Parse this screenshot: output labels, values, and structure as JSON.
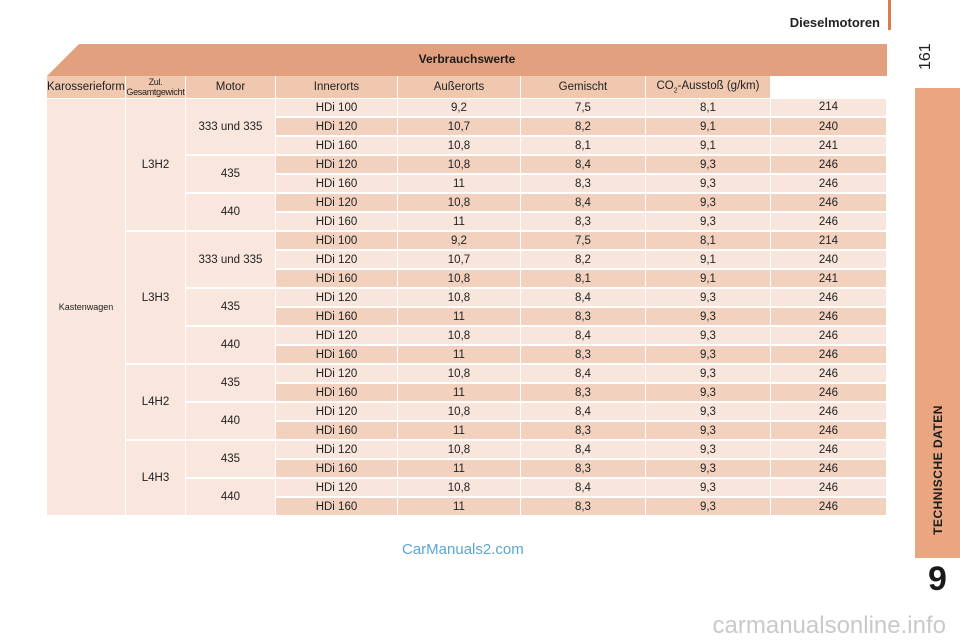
{
  "header": {
    "section_title": "Dieselmotoren",
    "page_number": "161"
  },
  "side_tab": {
    "label": "TECHNISCHE DATEN",
    "chapter_number": "9"
  },
  "table": {
    "title": "Verbrauchswerte",
    "columns": [
      "Karosserieform",
      "Zul. Gesamtgewicht",
      "Motor",
      "Innerorts",
      "Außerorts",
      "Gemischt",
      "CO",
      "2",
      "-Ausstoß (g/km)"
    ],
    "body_type": "Kastenwagen",
    "groups": [
      {
        "variant": "L3H2",
        "weights": [
          {
            "weight": "333 und 335",
            "rows": [
              {
                "motor": "HDi 100",
                "innerorts": "9,2",
                "ausserorts": "7,5",
                "gemischt": "8,1",
                "co2": "214"
              },
              {
                "motor": "HDi 120",
                "innerorts": "10,7",
                "ausserorts": "8,2",
                "gemischt": "9,1",
                "co2": "240"
              },
              {
                "motor": "HDi 160",
                "innerorts": "10,8",
                "ausserorts": "8,1",
                "gemischt": "9,1",
                "co2": "241"
              }
            ]
          },
          {
            "weight": "435",
            "rows": [
              {
                "motor": "HDi 120",
                "innerorts": "10,8",
                "ausserorts": "8,4",
                "gemischt": "9,3",
                "co2": "246"
              },
              {
                "motor": "HDi 160",
                "innerorts": "11",
                "ausserorts": "8,3",
                "gemischt": "9,3",
                "co2": "246"
              }
            ]
          },
          {
            "weight": "440",
            "rows": [
              {
                "motor": "HDi 120",
                "innerorts": "10,8",
                "ausserorts": "8,4",
                "gemischt": "9,3",
                "co2": "246"
              },
              {
                "motor": "HDi 160",
                "innerorts": "11",
                "ausserorts": "8,3",
                "gemischt": "9,3",
                "co2": "246"
              }
            ]
          }
        ]
      },
      {
        "variant": "L3H3",
        "weights": [
          {
            "weight": "333 und 335",
            "rows": [
              {
                "motor": "HDi 100",
                "innerorts": "9,2",
                "ausserorts": "7,5",
                "gemischt": "8,1",
                "co2": "214"
              },
              {
                "motor": "HDi 120",
                "innerorts": "10,7",
                "ausserorts": "8,2",
                "gemischt": "9,1",
                "co2": "240"
              },
              {
                "motor": "HDi 160",
                "innerorts": "10,8",
                "ausserorts": "8,1",
                "gemischt": "9,1",
                "co2": "241"
              }
            ]
          },
          {
            "weight": "435",
            "rows": [
              {
                "motor": "HDi 120",
                "innerorts": "10,8",
                "ausserorts": "8,4",
                "gemischt": "9,3",
                "co2": "246"
              },
              {
                "motor": "HDi 160",
                "innerorts": "11",
                "ausserorts": "8,3",
                "gemischt": "9,3",
                "co2": "246"
              }
            ]
          },
          {
            "weight": "440",
            "rows": [
              {
                "motor": "HDi 120",
                "innerorts": "10,8",
                "ausserorts": "8,4",
                "gemischt": "9,3",
                "co2": "246"
              },
              {
                "motor": "HDi 160",
                "innerorts": "11",
                "ausserorts": "8,3",
                "gemischt": "9,3",
                "co2": "246"
              }
            ]
          }
        ]
      },
      {
        "variant": "L4H2",
        "weights": [
          {
            "weight": "435",
            "rows": [
              {
                "motor": "HDi 120",
                "innerorts": "10,8",
                "ausserorts": "8,4",
                "gemischt": "9,3",
                "co2": "246"
              },
              {
                "motor": "HDi 160",
                "innerorts": "11",
                "ausserorts": "8,3",
                "gemischt": "9,3",
                "co2": "246"
              }
            ]
          },
          {
            "weight": "440",
            "rows": [
              {
                "motor": "HDi 120",
                "innerorts": "10,8",
                "ausserorts": "8,4",
                "gemischt": "9,3",
                "co2": "246"
              },
              {
                "motor": "HDi 160",
                "innerorts": "11",
                "ausserorts": "8,3",
                "gemischt": "9,3",
                "co2": "246"
              }
            ]
          }
        ]
      },
      {
        "variant": "L4H3",
        "weights": [
          {
            "weight": "435",
            "rows": [
              {
                "motor": "HDi 120",
                "innerorts": "10,8",
                "ausserorts": "8,4",
                "gemischt": "9,3",
                "co2": "246"
              },
              {
                "motor": "HDi 160",
                "innerorts": "11",
                "ausserorts": "8,3",
                "gemischt": "9,3",
                "co2": "246"
              }
            ]
          },
          {
            "weight": "440",
            "rows": [
              {
                "motor": "HDi 120",
                "innerorts": "10,8",
                "ausserorts": "8,4",
                "gemischt": "9,3",
                "co2": "246"
              },
              {
                "motor": "HDi 160",
                "innerorts": "11",
                "ausserorts": "8,3",
                "gemischt": "9,3",
                "co2": "246"
              }
            ]
          }
        ]
      }
    ]
  },
  "watermarks": {
    "left": "CarManuals2.com",
    "bottom": "carmanualsonline.info"
  }
}
